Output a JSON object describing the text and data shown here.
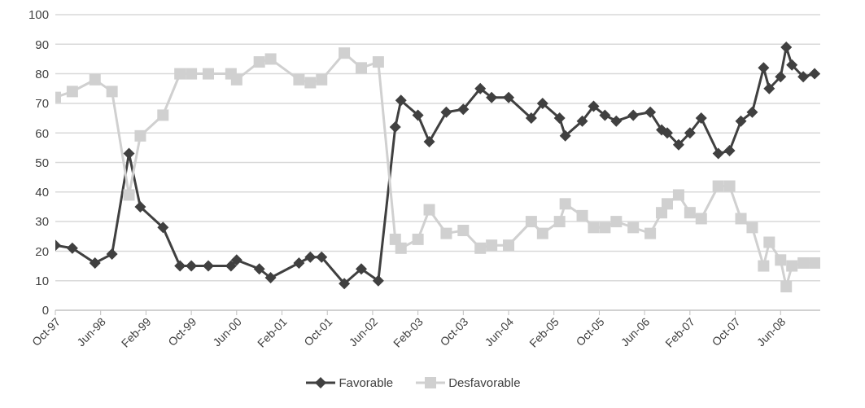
{
  "chart_data": {
    "type": "line",
    "x": [
      "1997-10",
      "1998-01",
      "1998-05",
      "1998-08",
      "1998-11",
      "1999-01",
      "1999-05",
      "1999-08",
      "1999-10",
      "2000-01",
      "2000-05",
      "2000-06",
      "2000-10",
      "2000-12",
      "2001-05",
      "2001-07",
      "2001-09",
      "2002-01",
      "2002-04",
      "2002-07",
      "2002-10",
      "2002-11",
      "2003-02",
      "2003-04",
      "2003-07",
      "2003-10",
      "2004-01",
      "2004-03",
      "2004-06",
      "2004-10",
      "2004-12",
      "2005-03",
      "2005-04",
      "2005-07",
      "2005-09",
      "2005-11",
      "2006-01",
      "2006-04",
      "2006-07",
      "2006-09",
      "2006-10",
      "2006-12",
      "2007-02",
      "2007-04",
      "2007-07",
      "2007-09",
      "2007-11",
      "2008-01",
      "2008-03",
      "2008-04",
      "2008-06",
      "2008-07",
      "2008-08",
      "2008-10",
      "2008-12"
    ],
    "series": [
      {
        "name": "Favorable",
        "color": "#404040",
        "marker": "diamond",
        "values": [
          22,
          21,
          16,
          19,
          53,
          35,
          28,
          15,
          15,
          15,
          15,
          17,
          14,
          11,
          16,
          18,
          18,
          9,
          14,
          10,
          62,
          71,
          66,
          57,
          67,
          68,
          75,
          72,
          72,
          65,
          70,
          65,
          59,
          64,
          69,
          66,
          64,
          66,
          67,
          61,
          60,
          56,
          60,
          65,
          53,
          54,
          64,
          67,
          82,
          75,
          79,
          89,
          83,
          79,
          80
        ]
      },
      {
        "name": "Desfavorable",
        "color": "#d0d0d0",
        "marker": "square",
        "values": [
          72,
          74,
          78,
          74,
          39,
          59,
          66,
          80,
          80,
          80,
          80,
          78,
          84,
          85,
          78,
          77,
          78,
          87,
          82,
          84,
          24,
          21,
          24,
          34,
          26,
          27,
          21,
          22,
          22,
          30,
          26,
          30,
          36,
          32,
          28,
          28,
          30,
          28,
          26,
          33,
          36,
          39,
          33,
          31,
          42,
          42,
          31,
          28,
          15,
          23,
          17,
          8,
          15,
          16,
          16
        ]
      }
    ],
    "xlim": [
      "1997-10",
      "2009-01"
    ],
    "xticks": [
      {
        "value": "1997-10",
        "label": "Oct-97"
      },
      {
        "value": "1998-06",
        "label": "Jun-98"
      },
      {
        "value": "1999-02",
        "label": "Feb-99"
      },
      {
        "value": "1999-10",
        "label": "Oct-99"
      },
      {
        "value": "2000-06",
        "label": "Jun-00"
      },
      {
        "value": "2001-02",
        "label": "Feb-01"
      },
      {
        "value": "2001-10",
        "label": "Oct-01"
      },
      {
        "value": "2002-06",
        "label": "Jun-02"
      },
      {
        "value": "2003-02",
        "label": "Feb-03"
      },
      {
        "value": "2003-10",
        "label": "Oct-03"
      },
      {
        "value": "2004-06",
        "label": "Jun-04"
      },
      {
        "value": "2005-02",
        "label": "Feb-05"
      },
      {
        "value": "2005-10",
        "label": "Oct-05"
      },
      {
        "value": "2006-06",
        "label": "Jun-06"
      },
      {
        "value": "2007-02",
        "label": "Feb-07"
      },
      {
        "value": "2007-10",
        "label": "Oct-07"
      },
      {
        "value": "2008-06",
        "label": "Jun-08"
      }
    ],
    "ylim": [
      0,
      100
    ],
    "yticks": [
      0,
      10,
      20,
      30,
      40,
      50,
      60,
      70,
      80,
      90,
      100
    ],
    "grid": "y",
    "legend": "bottom"
  }
}
